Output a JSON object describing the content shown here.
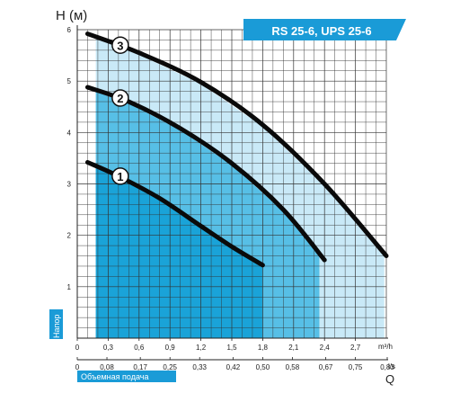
{
  "chart_data": {
    "type": "line",
    "title": "RS 25-6, UPS 25-6",
    "ylabel": "H (м)",
    "y_side_label": "Напор",
    "x_bottom_label": "Объемная подача",
    "x_bottom_symbol": "Q",
    "x_top_unit": "m³/h",
    "x_bottom_unit": "l/s",
    "xlim": [
      0,
      3.0
    ],
    "ylim": [
      0,
      6
    ],
    "grid": true,
    "y_ticks": [
      "1",
      "2",
      "3",
      "4",
      "5",
      "6"
    ],
    "x_ticks_m3h": [
      {
        "value": 0,
        "label": "0"
      },
      {
        "value": 0.3,
        "label": "0,3"
      },
      {
        "value": 0.6,
        "label": "0,6"
      },
      {
        "value": 0.9,
        "label": "0,9"
      },
      {
        "value": 1.2,
        "label": "1,2"
      },
      {
        "value": 1.5,
        "label": "1,5"
      },
      {
        "value": 1.8,
        "label": "1,8"
      },
      {
        "value": 2.1,
        "label": "2,1"
      },
      {
        "value": 2.4,
        "label": "2,4"
      },
      {
        "value": 2.7,
        "label": "2,7"
      }
    ],
    "x_ticks_ls": [
      {
        "value": 0,
        "label": "0"
      },
      {
        "value": 0.288,
        "label": "0,08"
      },
      {
        "value": 0.612,
        "label": "0,17"
      },
      {
        "value": 0.9,
        "label": "0,25"
      },
      {
        "value": 1.188,
        "label": "0,33"
      },
      {
        "value": 1.512,
        "label": "0,42"
      },
      {
        "value": 1.8,
        "label": "0,50"
      },
      {
        "value": 2.088,
        "label": "0,58"
      },
      {
        "value": 2.412,
        "label": "0,67"
      },
      {
        "value": 2.7,
        "label": "0,75"
      },
      {
        "value": 3.024,
        "label": "0,83"
      }
    ],
    "series": [
      {
        "name": "1",
        "points": [
          [
            0.1,
            3.42
          ],
          [
            0.4,
            3.15
          ],
          [
            0.8,
            2.72
          ],
          [
            1.2,
            2.18
          ],
          [
            1.5,
            1.78
          ],
          [
            1.8,
            1.42
          ]
        ]
      },
      {
        "name": "2",
        "points": [
          [
            0.1,
            4.88
          ],
          [
            0.5,
            4.6
          ],
          [
            1.0,
            4.08
          ],
          [
            1.5,
            3.4
          ],
          [
            2.0,
            2.5
          ],
          [
            2.4,
            1.52
          ]
        ]
      },
      {
        "name": "3",
        "points": [
          [
            0.1,
            5.92
          ],
          [
            0.6,
            5.55
          ],
          [
            1.2,
            4.98
          ],
          [
            1.8,
            4.15
          ],
          [
            2.4,
            3.0
          ],
          [
            3.0,
            1.6
          ]
        ]
      }
    ],
    "regions": [
      {
        "series": "1",
        "x_range": [
          0.18,
          1.8
        ],
        "color": "#1aa3d8"
      },
      {
        "series": "2",
        "x_range": [
          0.18,
          2.35
        ],
        "color": "#57bfe6"
      },
      {
        "series": "3",
        "x_range": [
          0.18,
          2.98
        ],
        "color": "#c9e9f7"
      }
    ],
    "colors": {
      "curve": "#0a0a0a",
      "banner": "#1a9bd7",
      "banner_text": "#ffffff",
      "label_fill": "#1a9bd7",
      "grid": "#333333"
    }
  }
}
